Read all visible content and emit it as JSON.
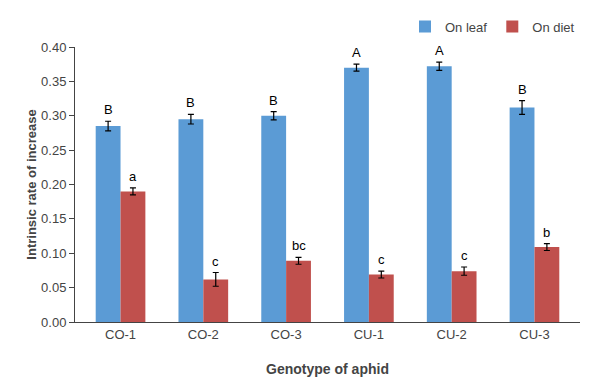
{
  "chart_data": {
    "type": "bar",
    "categories": [
      "CO-1",
      "CO-2",
      "CO-3",
      "CU-1",
      "CU-2",
      "CU-3"
    ],
    "series": [
      {
        "name": "On leaf",
        "color": "#5B9BD5",
        "values": [
          0.285,
          0.295,
          0.3,
          0.37,
          0.372,
          0.312
        ],
        "errors": [
          0.007,
          0.007,
          0.006,
          0.005,
          0.006,
          0.01
        ],
        "labels": [
          "B",
          "B",
          "B",
          "A",
          "A",
          "B"
        ]
      },
      {
        "name": "On diet",
        "color": "#C0504D",
        "values": [
          0.19,
          0.062,
          0.089,
          0.069,
          0.074,
          0.109
        ],
        "errors": [
          0.005,
          0.01,
          0.005,
          0.005,
          0.006,
          0.005
        ],
        "labels": [
          "a",
          "c",
          "bc",
          "c",
          "c",
          "b"
        ]
      }
    ],
    "xlabel": "Genotype of aphid",
    "ylabel": "Intrinsic rate of increase",
    "ylim": [
      0.0,
      0.4
    ],
    "yticks": [
      {
        "value": 0.0,
        "label": "0.00"
      },
      0.05,
      {
        "value": 0.1,
        "label": "0.10"
      },
      0.15,
      {
        "value": 0.2,
        "label": "0.20"
      },
      0.25,
      {
        "value": 0.3,
        "label": "0.30"
      },
      0.35,
      {
        "value": 0.4,
        "label": "0.40"
      }
    ],
    "grid": false,
    "legend": "upper right"
  }
}
